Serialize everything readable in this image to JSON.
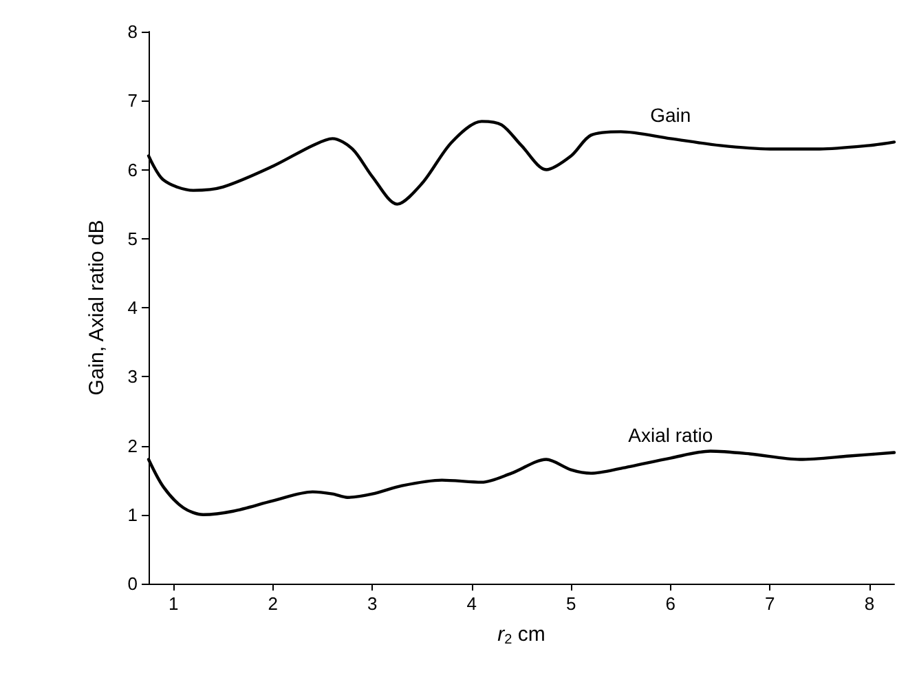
{
  "chart_data": {
    "type": "line",
    "xlabel": "r$_{2}$ cm",
    "ylabel": "Gain, Axial ratio dB",
    "xlim": [
      0.75,
      8.25
    ],
    "ylim": [
      0,
      8
    ],
    "xticks": [
      1,
      2,
      3,
      4,
      5,
      6,
      7,
      8
    ],
    "yticks": [
      0,
      1,
      2,
      3,
      4,
      5,
      6,
      7,
      8
    ],
    "grid": false,
    "legend": false,
    "marker": "none",
    "line_style": "solid",
    "series": [
      {
        "name": "Gain",
        "color": "#000000",
        "x": [
          0.75,
          0.9,
          1.2,
          1.5,
          2,
          2.4,
          2.6,
          2.8,
          3.0,
          3.25,
          3.5,
          3.8,
          4.1,
          4.3,
          4.5,
          4.75,
          5.0,
          5.2,
          5.5,
          6,
          6.5,
          7,
          7.5,
          8,
          8.25
        ],
        "values": [
          6.2,
          5.85,
          5.7,
          5.75,
          6.05,
          6.35,
          6.45,
          6.3,
          5.9,
          5.5,
          5.8,
          6.4,
          6.7,
          6.65,
          6.35,
          6.0,
          6.2,
          6.5,
          6.55,
          6.45,
          6.35,
          6.3,
          6.3,
          6.35,
          6.4
        ]
      },
      {
        "name": "Axial ratio",
        "color": "#000000",
        "x": [
          0.75,
          0.9,
          1.1,
          1.3,
          1.6,
          2,
          2.4,
          2.6,
          2.75,
          3,
          3.3,
          3.7,
          4.1,
          4.4,
          4.75,
          5.0,
          5.2,
          5.5,
          6,
          6.4,
          6.8,
          7.3,
          7.8,
          8.25
        ],
        "values": [
          1.8,
          1.4,
          1.1,
          1.0,
          1.05,
          1.2,
          1.33,
          1.3,
          1.25,
          1.3,
          1.42,
          1.5,
          1.47,
          1.6,
          1.8,
          1.65,
          1.6,
          1.67,
          1.82,
          1.92,
          1.88,
          1.8,
          1.85,
          1.9
        ]
      }
    ]
  }
}
